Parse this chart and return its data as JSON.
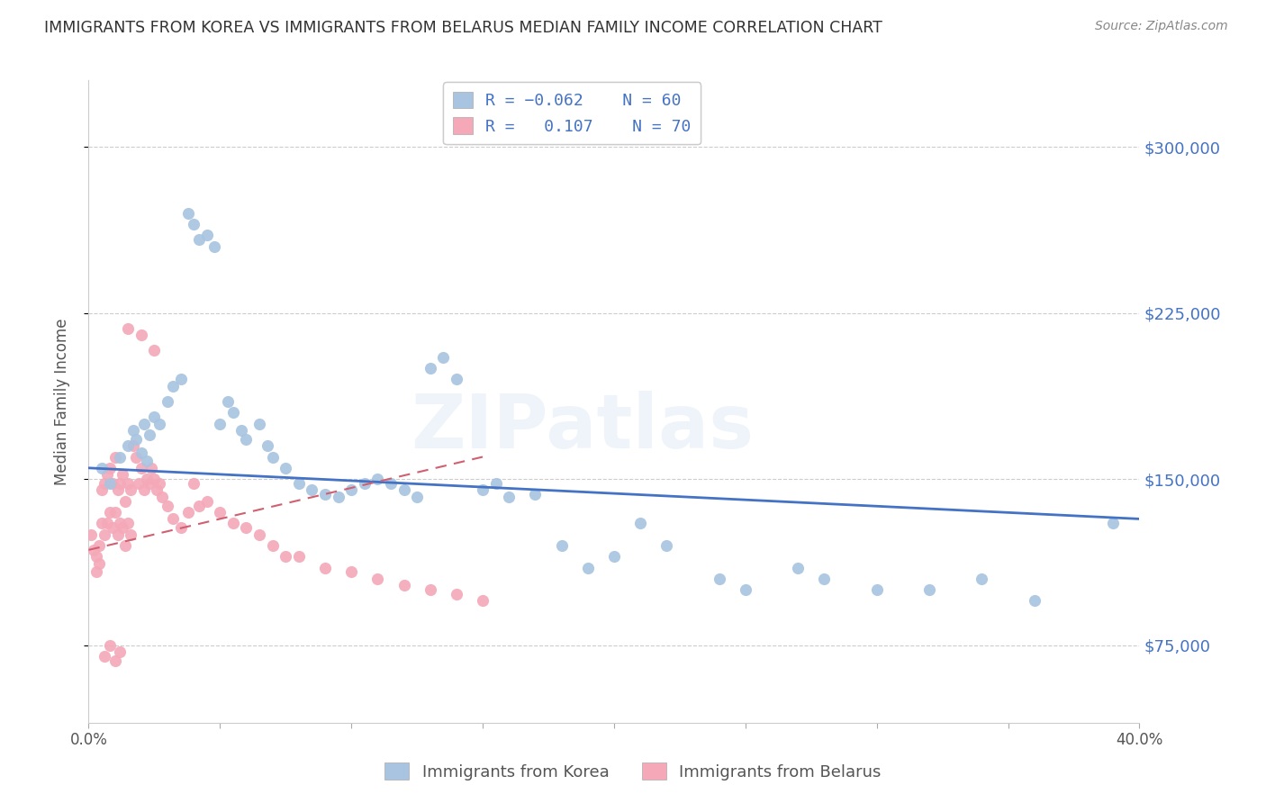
{
  "title": "IMMIGRANTS FROM KOREA VS IMMIGRANTS FROM BELARUS MEDIAN FAMILY INCOME CORRELATION CHART",
  "source": "Source: ZipAtlas.com",
  "ylabel": "Median Family Income",
  "yticks": [
    75000,
    150000,
    225000,
    300000
  ],
  "ytick_labels": [
    "$75,000",
    "$150,000",
    "$225,000",
    "$300,000"
  ],
  "legend_korea_r": "R = -0.062",
  "legend_korea_n": "N = 60",
  "legend_belarus_r": "R =  0.107",
  "legend_belarus_n": "N = 70",
  "korea_color": "#a8c4e0",
  "korea_edge_color": "#6699cc",
  "belarus_color": "#f4a8b8",
  "belarus_edge_color": "#e06080",
  "korea_line_color": "#4472c4",
  "belarus_line_color": "#d06070",
  "watermark": "ZIPatlas",
  "xlim": [
    0.0,
    0.4
  ],
  "ylim": [
    40000,
    330000
  ],
  "korea_scatter_x": [
    0.005,
    0.008,
    0.012,
    0.015,
    0.017,
    0.018,
    0.02,
    0.021,
    0.022,
    0.023,
    0.025,
    0.027,
    0.03,
    0.032,
    0.035,
    0.038,
    0.04,
    0.042,
    0.045,
    0.048,
    0.05,
    0.053,
    0.055,
    0.058,
    0.06,
    0.065,
    0.068,
    0.07,
    0.075,
    0.08,
    0.085,
    0.09,
    0.095,
    0.1,
    0.105,
    0.11,
    0.115,
    0.12,
    0.125,
    0.13,
    0.135,
    0.14,
    0.15,
    0.155,
    0.16,
    0.17,
    0.18,
    0.19,
    0.2,
    0.21,
    0.22,
    0.24,
    0.25,
    0.27,
    0.28,
    0.3,
    0.32,
    0.34,
    0.36,
    0.39
  ],
  "korea_scatter_y": [
    155000,
    148000,
    160000,
    165000,
    172000,
    168000,
    162000,
    175000,
    158000,
    170000,
    178000,
    175000,
    185000,
    192000,
    195000,
    270000,
    265000,
    258000,
    260000,
    255000,
    175000,
    185000,
    180000,
    172000,
    168000,
    175000,
    165000,
    160000,
    155000,
    148000,
    145000,
    143000,
    142000,
    145000,
    148000,
    150000,
    148000,
    145000,
    142000,
    200000,
    205000,
    195000,
    145000,
    148000,
    142000,
    143000,
    120000,
    110000,
    115000,
    130000,
    120000,
    105000,
    100000,
    110000,
    105000,
    100000,
    100000,
    105000,
    95000,
    130000
  ],
  "belarus_scatter_x": [
    0.001,
    0.002,
    0.003,
    0.003,
    0.004,
    0.004,
    0.005,
    0.005,
    0.006,
    0.006,
    0.007,
    0.007,
    0.008,
    0.008,
    0.009,
    0.009,
    0.01,
    0.01,
    0.011,
    0.011,
    0.012,
    0.012,
    0.013,
    0.013,
    0.014,
    0.014,
    0.015,
    0.015,
    0.016,
    0.016,
    0.017,
    0.018,
    0.019,
    0.02,
    0.021,
    0.022,
    0.023,
    0.024,
    0.025,
    0.026,
    0.027,
    0.028,
    0.03,
    0.032,
    0.035,
    0.038,
    0.04,
    0.042,
    0.045,
    0.05,
    0.055,
    0.06,
    0.065,
    0.07,
    0.075,
    0.08,
    0.09,
    0.1,
    0.11,
    0.12,
    0.13,
    0.14,
    0.15,
    0.015,
    0.02,
    0.025,
    0.01,
    0.012,
    0.008,
    0.006
  ],
  "belarus_scatter_y": [
    125000,
    118000,
    115000,
    108000,
    120000,
    112000,
    145000,
    130000,
    148000,
    125000,
    152000,
    130000,
    155000,
    135000,
    148000,
    128000,
    160000,
    135000,
    145000,
    125000,
    148000,
    130000,
    152000,
    128000,
    140000,
    120000,
    148000,
    130000,
    145000,
    125000,
    165000,
    160000,
    148000,
    155000,
    145000,
    150000,
    148000,
    155000,
    150000,
    145000,
    148000,
    142000,
    138000,
    132000,
    128000,
    135000,
    148000,
    138000,
    140000,
    135000,
    130000,
    128000,
    125000,
    120000,
    115000,
    115000,
    110000,
    108000,
    105000,
    102000,
    100000,
    98000,
    95000,
    218000,
    215000,
    208000,
    68000,
    72000,
    75000,
    70000
  ],
  "korea_trendline_x": [
    0.0,
    0.4
  ],
  "korea_trendline_y": [
    155000,
    132000
  ],
  "belarus_trendline_x": [
    0.0,
    0.15
  ],
  "belarus_trendline_y": [
    118000,
    160000
  ]
}
